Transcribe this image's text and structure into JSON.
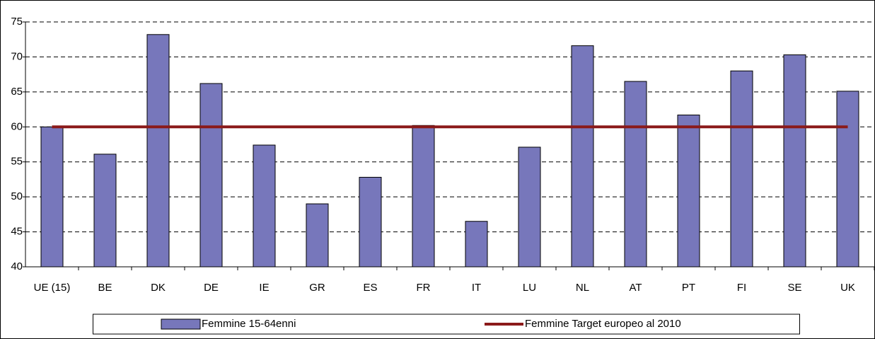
{
  "chart_data": {
    "type": "bar",
    "categories": [
      "UE (15)",
      "BE",
      "DK",
      "DE",
      "IE",
      "GR",
      "ES",
      "FR",
      "IT",
      "LU",
      "NL",
      "AT",
      "PT",
      "FI",
      "SE",
      "UK"
    ],
    "series": [
      {
        "name": "Femmine 15-64enni",
        "type": "bar",
        "color": "#7777bb",
        "values": [
          60,
          56.1,
          73.2,
          66.2,
          57.4,
          49,
          52.8,
          60.2,
          46.5,
          57.1,
          71.6,
          66.5,
          61.7,
          68,
          70.3,
          65.1
        ]
      },
      {
        "name": "Femmine Target europeo al 2010",
        "type": "line",
        "color": "#8b1a1a",
        "values": [
          60,
          60,
          60,
          60,
          60,
          60,
          60,
          60,
          60,
          60,
          60,
          60,
          60,
          60,
          60,
          60
        ]
      }
    ],
    "ylim": [
      40,
      75
    ],
    "yticks": [
      40,
      45,
      50,
      55,
      60,
      65,
      70,
      75
    ],
    "grid": true,
    "legend": "bottom"
  }
}
